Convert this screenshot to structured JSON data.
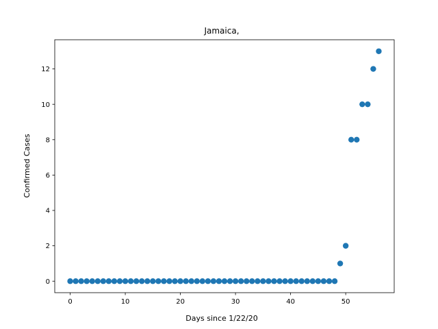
{
  "chart_data": {
    "type": "scatter",
    "title": "Jamaica,",
    "xlabel": "Days since 1/22/20",
    "ylabel": "Confirmed Cases",
    "xlim": [
      -2.8,
      58.8
    ],
    "ylim": [
      -0.65,
      13.65
    ],
    "xticks": [
      0,
      10,
      20,
      30,
      40,
      50
    ],
    "yticks": [
      0,
      2,
      4,
      6,
      8,
      10,
      12
    ],
    "grid": false,
    "marker_color": "#1f77b4",
    "series": [
      {
        "x": [
          0,
          1,
          2,
          3,
          4,
          5,
          6,
          7,
          8,
          9,
          10,
          11,
          12,
          13,
          14,
          15,
          16,
          17,
          18,
          19,
          20,
          21,
          22,
          23,
          24,
          25,
          26,
          27,
          28,
          29,
          30,
          31,
          32,
          33,
          34,
          35,
          36,
          37,
          38,
          39,
          40,
          41,
          42,
          43,
          44,
          45,
          46,
          47,
          48,
          49,
          50,
          51,
          52,
          53,
          54,
          55,
          56
        ],
        "y": [
          0,
          0,
          0,
          0,
          0,
          0,
          0,
          0,
          0,
          0,
          0,
          0,
          0,
          0,
          0,
          0,
          0,
          0,
          0,
          0,
          0,
          0,
          0,
          0,
          0,
          0,
          0,
          0,
          0,
          0,
          0,
          0,
          0,
          0,
          0,
          0,
          0,
          0,
          0,
          0,
          0,
          0,
          0,
          0,
          0,
          0,
          0,
          0,
          0,
          1,
          2,
          8,
          8,
          10,
          10,
          12,
          13
        ]
      }
    ]
  }
}
